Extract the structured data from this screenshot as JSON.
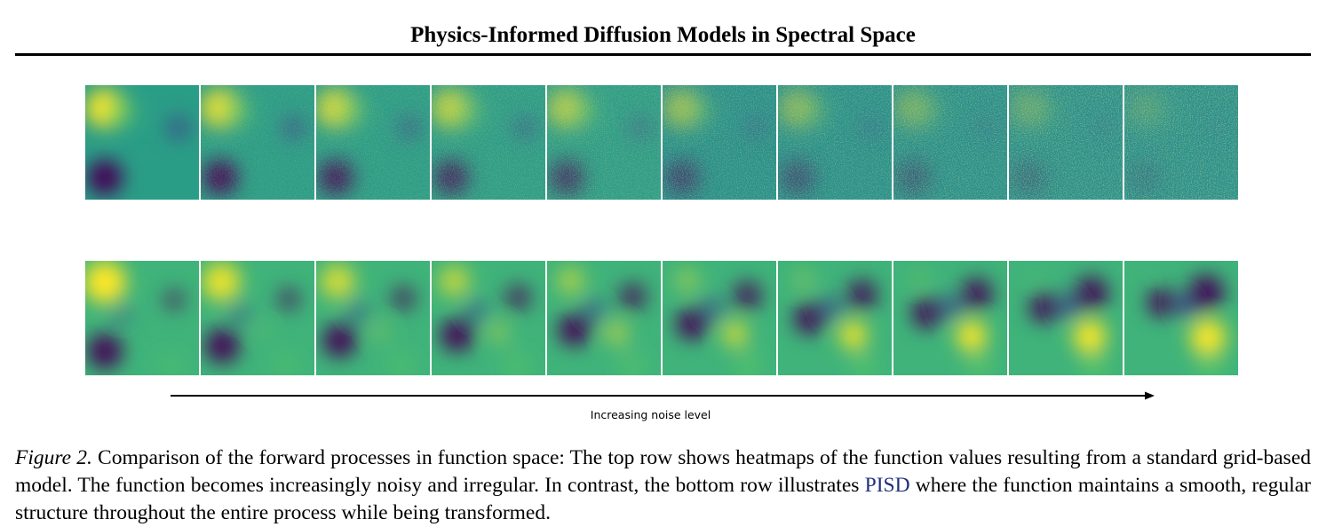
{
  "header": {
    "running_title": "Physics-Informed Diffusion Models in Spectral Space"
  },
  "figure": {
    "rows": [
      {
        "name": "top",
        "description_id": "grid-based",
        "tiles": 10
      },
      {
        "name": "bottom",
        "description_id": "pisd",
        "tiles": 10
      }
    ],
    "colormap": [
      "#440154",
      "#3b528b",
      "#21918c",
      "#5ec962",
      "#fde725"
    ],
    "noise_levels": [
      0.0,
      0.11,
      0.22,
      0.33,
      0.44,
      0.56,
      0.67,
      0.78,
      0.89,
      1.0
    ],
    "axis_label": "Increasing noise level"
  },
  "caption": {
    "label": "Figure 2.",
    "text_before_ref": " Comparison of the forward processes in function space: The top row shows heatmaps of the function values resulting from a standard grid-based model. The function becomes increasingly noisy and irregular. In contrast, the bottom row illustrates ",
    "ref": "PISD",
    "text_after_ref": " where the function maintains a smooth, regular structure throughout the entire process while being transformed."
  }
}
